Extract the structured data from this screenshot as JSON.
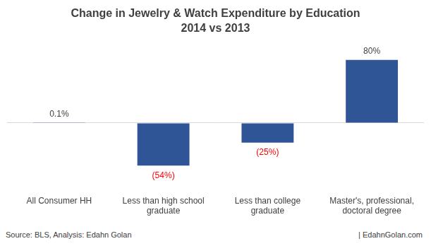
{
  "chart_data": {
    "type": "bar",
    "title": "Change in Jewelry & Watch Expenditure by Education",
    "subtitle": "2014 vs 2013",
    "categories": [
      "All Consumer HH",
      "Less than high school graduate",
      "Less than college graduate",
      "Master's, professional, doctoral degree"
    ],
    "values": [
      0.1,
      -54,
      -25,
      80
    ],
    "value_labels": [
      "0.1%",
      "(54%)",
      "(25%)",
      "80%"
    ],
    "color": "#2f5597",
    "data_labels": true,
    "tick_labels": "x",
    "grid": false,
    "source": "Source: BLS, Analysis: Edahn Golan",
    "credit": "| EdahnGolan.com"
  }
}
